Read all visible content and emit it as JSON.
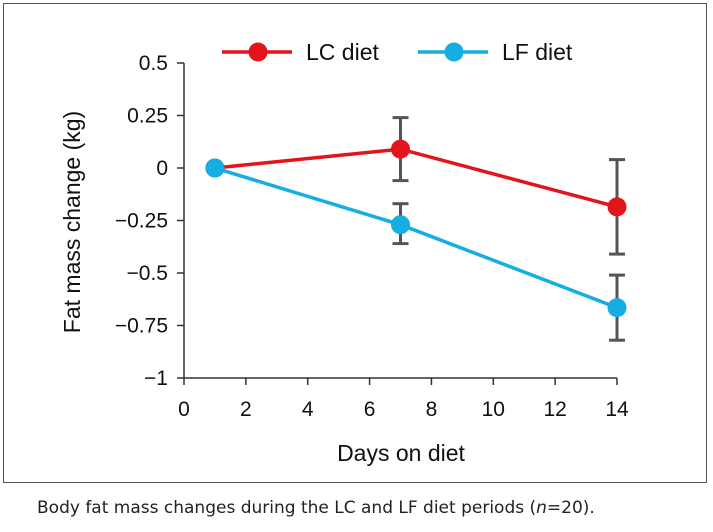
{
  "caption": {
    "text": "Body fat mass changes during the LC and LF diet periods (",
    "n_var": "n",
    "n_rest": "=20)."
  },
  "chart_data": {
    "type": "line",
    "xlabel": "Days on diet",
    "ylabel": "Fat mass change (kg)",
    "xlim": [
      0,
      14
    ],
    "ylim": [
      -1,
      0.5
    ],
    "xticks": [
      "0",
      "2",
      "4",
      "6",
      "8",
      "10",
      "12",
      "14"
    ],
    "yticks": [
      "0.5",
      "0.25",
      "0",
      "−0.25",
      "−0.5",
      "−0.75",
      "−1"
    ],
    "ytick_values": [
      0.5,
      0.25,
      0,
      -0.25,
      -0.5,
      -0.75,
      -1
    ],
    "xtick_values": [
      0,
      2,
      4,
      6,
      8,
      10,
      12,
      14
    ],
    "grid": false,
    "legend_position": "top",
    "x": [
      1,
      7,
      14
    ],
    "series": [
      {
        "name": "LC diet",
        "color": "#e3141c",
        "values": [
          0,
          0.09,
          -0.185
        ],
        "err_low": [
          null,
          -0.06,
          -0.41
        ],
        "err_high": [
          null,
          0.24,
          0.04
        ]
      },
      {
        "name": "LF diet",
        "color": "#14aee3",
        "values": [
          0,
          -0.27,
          -0.665
        ],
        "err_low": [
          null,
          -0.36,
          -0.82
        ],
        "err_high": [
          null,
          -0.17,
          -0.51
        ]
      }
    ]
  }
}
